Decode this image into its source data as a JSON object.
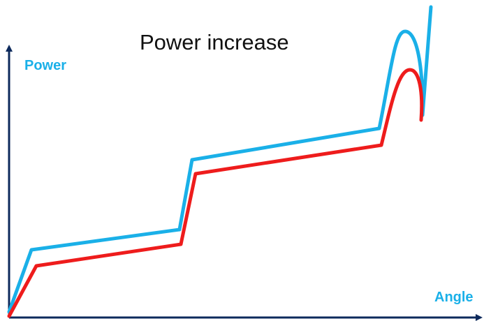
{
  "title": "Power increase",
  "y_axis_label": "Power",
  "x_axis_label": "Angle",
  "colors": {
    "axis": "#0d2a5c",
    "upper_curve": "#1ab0e8",
    "lower_curve": "#ee1c1c",
    "axis_label": "#1ab0e8"
  }
}
